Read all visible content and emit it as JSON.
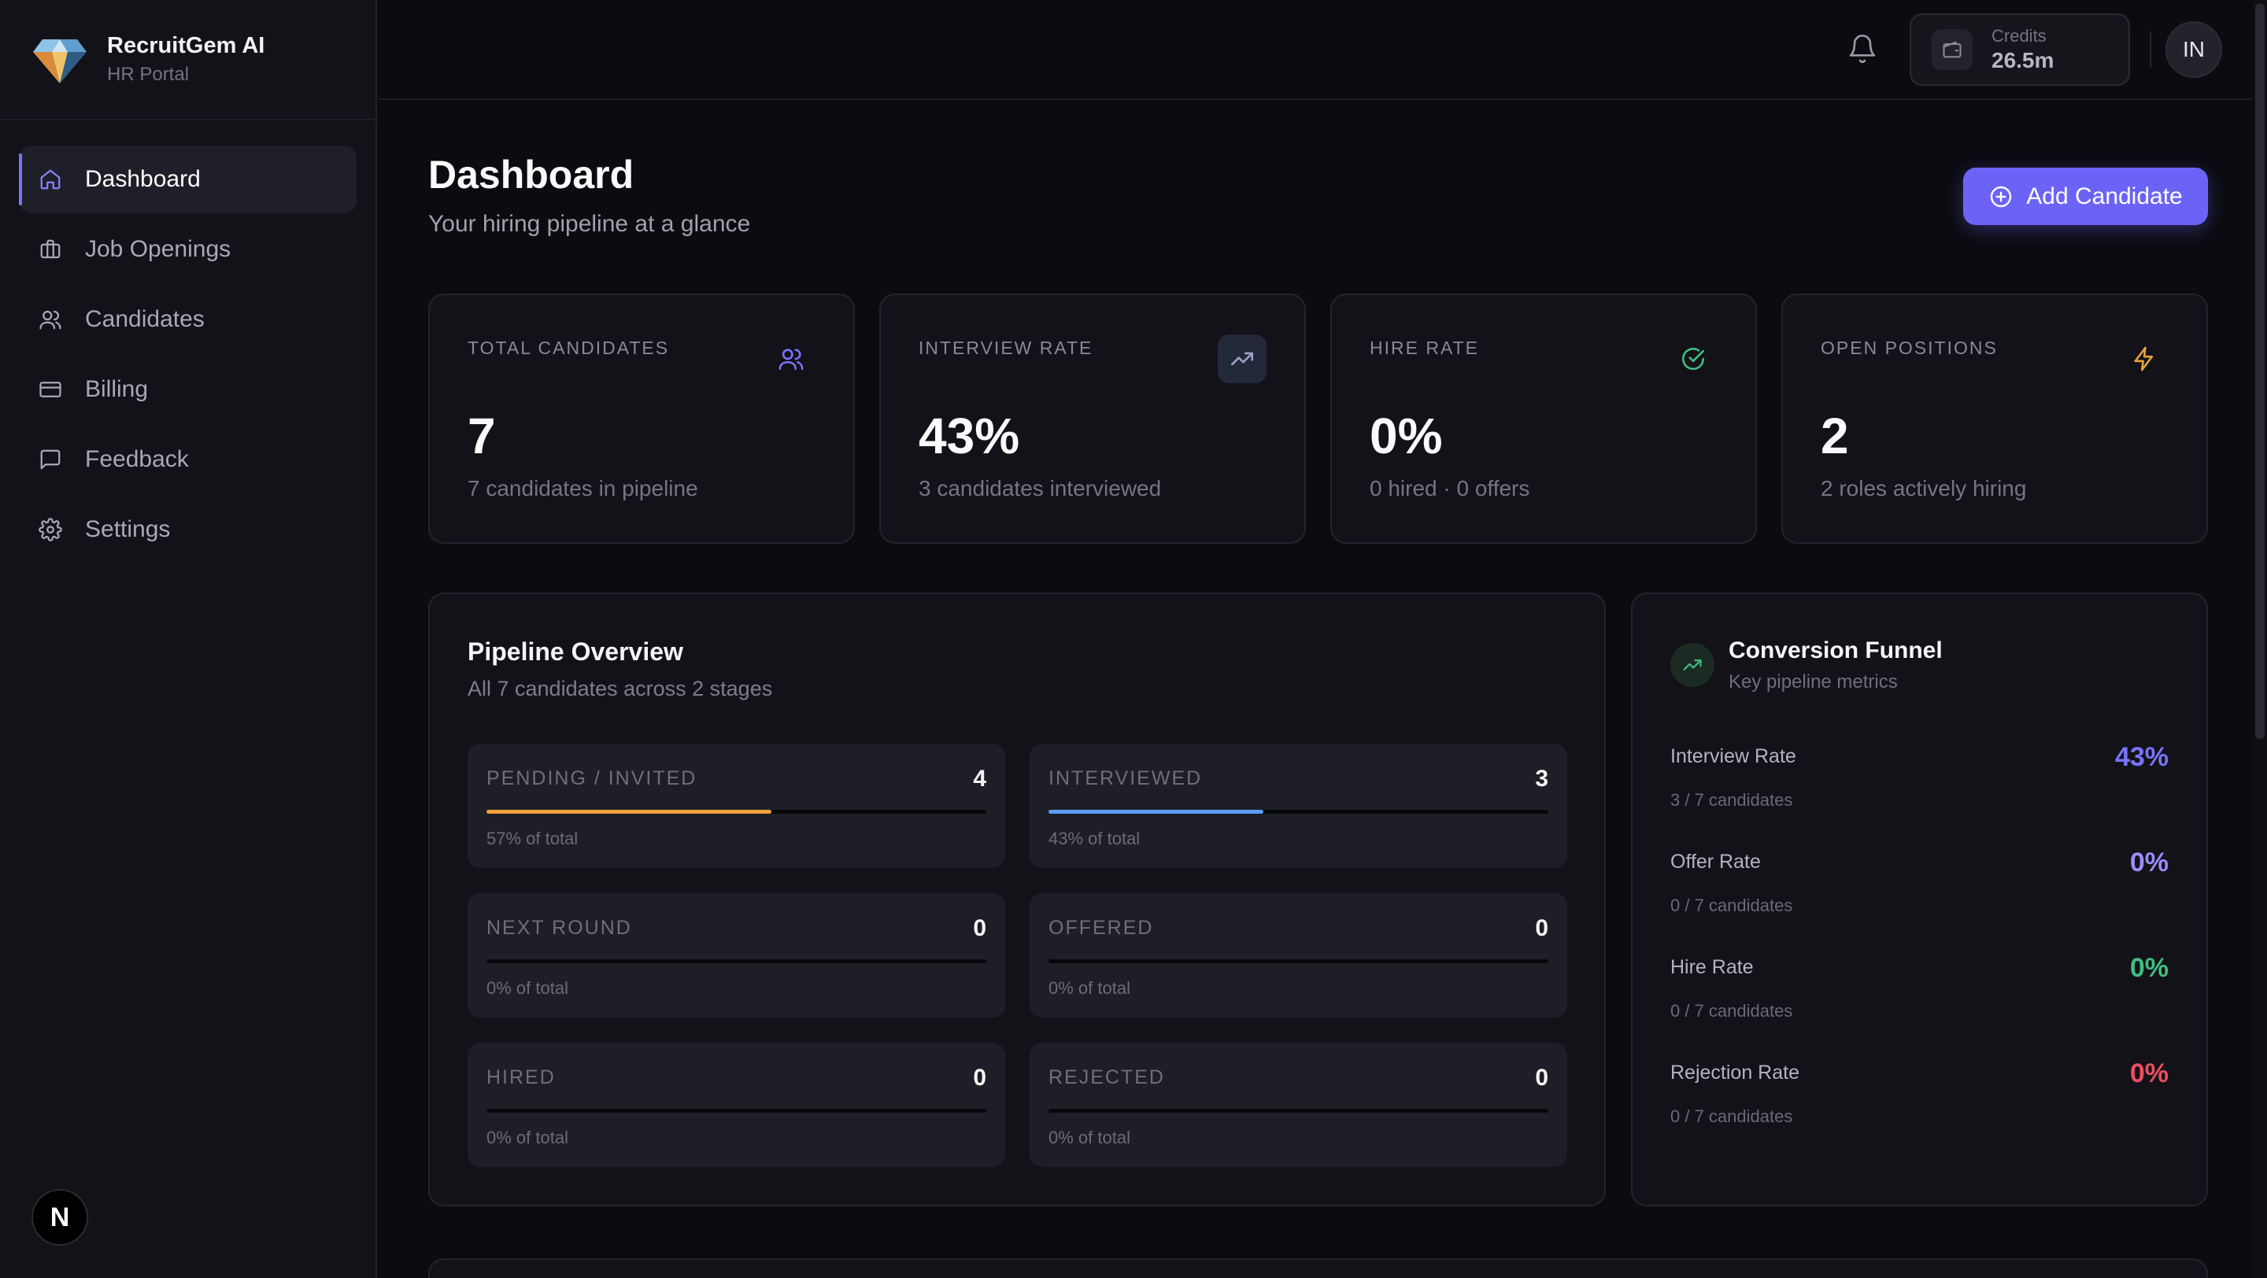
{
  "brand": {
    "name": "RecruitGem AI",
    "subtitle": "HR Portal",
    "logo_icon": "diamond-icon"
  },
  "nav": [
    {
      "label": "Dashboard",
      "icon": "home-icon",
      "active": true
    },
    {
      "label": "Job Openings",
      "icon": "briefcase-icon"
    },
    {
      "label": "Candidates",
      "icon": "users-icon"
    },
    {
      "label": "Billing",
      "icon": "credit-card-icon"
    },
    {
      "label": "Feedback",
      "icon": "message-icon"
    },
    {
      "label": "Settings",
      "icon": "gear-icon"
    }
  ],
  "footer_badge": "N",
  "topbar": {
    "credits_label": "Credits",
    "credits_value": "26.5m",
    "avatar_initials": "IN"
  },
  "page": {
    "title": "Dashboard",
    "subtitle": "Your hiring pipeline at a glance",
    "add_button": "Add Candidate"
  },
  "stats": [
    {
      "label": "TOTAL CANDIDATES",
      "value": "7",
      "desc": "7 candidates in pipeline",
      "icon": "users-icon",
      "color": "#7b73ff"
    },
    {
      "label": "INTERVIEW RATE",
      "value": "43%",
      "desc": "3 candidates interviewed",
      "icon": "trending-up-icon",
      "color": "#9aa6c8"
    },
    {
      "label": "HIRE RATE",
      "value": "0%",
      "desc": "0 hired · 0 offers",
      "icon": "check-circle-icon",
      "color": "#3fbf7f"
    },
    {
      "label": "OPEN POSITIONS",
      "value": "2",
      "desc": "2 roles actively hiring",
      "icon": "zap-icon",
      "color": "#e8a33b"
    }
  ],
  "pipeline": {
    "title": "Pipeline Overview",
    "subtitle": "All 7 candidates across 2 stages",
    "stages": [
      {
        "name": "PENDING / INVITED",
        "count": "4",
        "pct_label": "57% of total",
        "fraction": 0.57,
        "color": "#f0a23c"
      },
      {
        "name": "INTERVIEWED",
        "count": "3",
        "pct_label": "43% of total",
        "fraction": 0.43,
        "color": "#5b9bf5"
      },
      {
        "name": "NEXT ROUND",
        "count": "0",
        "pct_label": "0% of total",
        "fraction": 0,
        "color": "#7b73ff"
      },
      {
        "name": "OFFERED",
        "count": "0",
        "pct_label": "0% of total",
        "fraction": 0,
        "color": "#7b73ff"
      },
      {
        "name": "HIRED",
        "count": "0",
        "pct_label": "0% of total",
        "fraction": 0,
        "color": "#3fbf7f"
      },
      {
        "name": "REJECTED",
        "count": "0",
        "pct_label": "0% of total",
        "fraction": 0,
        "color": "#ef4d62"
      }
    ]
  },
  "funnel": {
    "title": "Conversion Funnel",
    "subtitle": "Key pipeline metrics",
    "icon": "trending-up-icon",
    "metrics": [
      {
        "name": "Interview Rate",
        "value": "43%",
        "sub": "3 / 7 candidates",
        "color": "#7b73ff"
      },
      {
        "name": "Offer Rate",
        "value": "0%",
        "sub": "0 / 7 candidates",
        "color": "#9a8cff"
      },
      {
        "name": "Hire Rate",
        "value": "0%",
        "sub": "0 / 7 candidates",
        "color": "#3fbf7f"
      },
      {
        "name": "Rejection Rate",
        "value": "0%",
        "sub": "0 / 7 candidates",
        "color": "#ef4d62"
      }
    ]
  }
}
